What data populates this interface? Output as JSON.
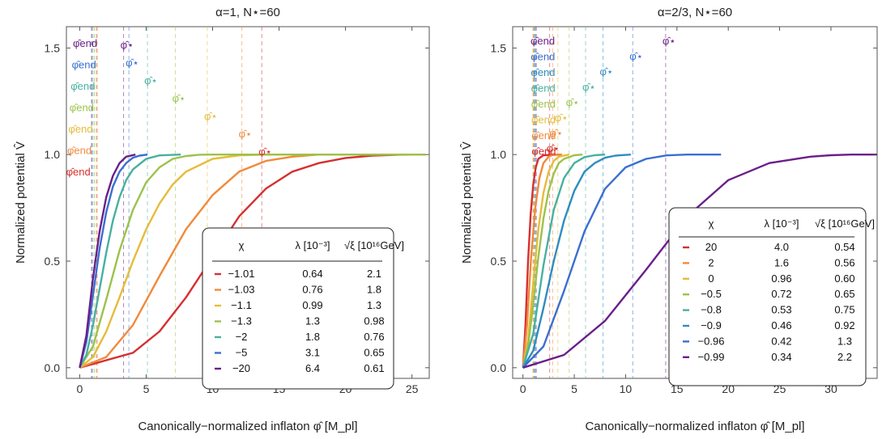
{
  "chart_data": [
    {
      "type": "line",
      "title": "α=1, N⋆=60",
      "xlabel": "Canonically−normalized inflaton φ̂ [M_pl]",
      "ylabel": "Normalized potential V̂",
      "xlim": [
        -1,
        26.3
      ],
      "ylim": [
        -0.05,
        1.6
      ],
      "xticks": [
        "0",
        "5",
        "10",
        "15",
        "20",
        "25"
      ],
      "yticks": [
        "0.0",
        "0.5",
        "1.0",
        "1.5"
      ],
      "legend_position": "bottom-right",
      "legend_headers": [
        "χ",
        "λ [10⁻³]",
        "√ξ [10¹⁶GeV]"
      ],
      "annotation_labels": {
        "end": "φ̂end",
        "star": "φ̂⋆"
      },
      "series": [
        {
          "chi": "−1.01",
          "lambda": "0.64",
          "sqrt_xi": "2.1",
          "color": "#d62f2f",
          "phi_end": 1.3,
          "phi_star": 13.7,
          "curve": [
            [
              0,
              0
            ],
            [
              4,
              0.07
            ],
            [
              6,
              0.17
            ],
            [
              8,
              0.33
            ],
            [
              10,
              0.52
            ],
            [
              12,
              0.71
            ],
            [
              14,
              0.84
            ],
            [
              16,
              0.92
            ],
            [
              18,
              0.96
            ],
            [
              20,
              0.984
            ],
            [
              22,
              0.995
            ],
            [
              24,
              0.999
            ],
            [
              26,
              1.0
            ]
          ]
        },
        {
          "chi": "−1.03",
          "lambda": "0.76",
          "sqrt_xi": "1.8",
          "color": "#f08a3c",
          "phi_end": 1.3,
          "phi_star": 12.2,
          "curve": [
            [
              0,
              0
            ],
            [
              2,
              0.05
            ],
            [
              4,
              0.2
            ],
            [
              6,
              0.43
            ],
            [
              8,
              0.65
            ],
            [
              10,
              0.81
            ],
            [
              12,
              0.92
            ],
            [
              14,
              0.97
            ],
            [
              16,
              0.99
            ],
            [
              18,
              1.0
            ],
            [
              26,
              1.0
            ]
          ]
        },
        {
          "chi": "−1.1",
          "lambda": "0.99",
          "sqrt_xi": "1.3",
          "color": "#e5bc3a",
          "phi_end": 1.2,
          "phi_star": 9.6,
          "curve": [
            [
              0,
              0
            ],
            [
              1,
              0.05
            ],
            [
              2,
              0.17
            ],
            [
              3,
              0.33
            ],
            [
              4,
              0.5
            ],
            [
              5,
              0.65
            ],
            [
              6,
              0.77
            ],
            [
              7,
              0.86
            ],
            [
              8,
              0.92
            ],
            [
              10,
              0.98
            ],
            [
              12,
              0.996
            ],
            [
              14,
              1.0
            ],
            [
              26,
              1.0
            ]
          ]
        },
        {
          "chi": "−1.3",
          "lambda": "1.3",
          "sqrt_xi": "0.98",
          "color": "#9cc24b",
          "phi_end": 1.1,
          "phi_star": 7.2,
          "curve": [
            [
              0,
              0
            ],
            [
              1,
              0.1
            ],
            [
              2,
              0.32
            ],
            [
              3,
              0.55
            ],
            [
              4,
              0.74
            ],
            [
              5,
              0.87
            ],
            [
              6,
              0.94
            ],
            [
              7,
              0.98
            ],
            [
              8,
              0.993
            ],
            [
              9,
              0.999
            ],
            [
              10,
              1.0
            ],
            [
              26,
              1.0
            ]
          ]
        },
        {
          "chi": "−2",
          "lambda": "1.8",
          "sqrt_xi": "0.76",
          "color": "#48b0a0",
          "phi_end": 1.0,
          "phi_star": 5.1,
          "curve": [
            [
              0,
              0
            ],
            [
              0.5,
              0.06
            ],
            [
              1,
              0.2
            ],
            [
              1.5,
              0.37
            ],
            [
              2,
              0.54
            ],
            [
              2.5,
              0.69
            ],
            [
              3,
              0.8
            ],
            [
              3.5,
              0.88
            ],
            [
              4,
              0.93
            ],
            [
              5,
              0.98
            ],
            [
              6,
              0.996
            ],
            [
              7.6,
              1.0
            ]
          ]
        },
        {
          "chi": "−5",
          "lambda": "3.1",
          "sqrt_xi": "0.65",
          "color": "#3a6fd0",
          "phi_end": 0.9,
          "phi_star": 3.7,
          "curve": [
            [
              0,
              0
            ],
            [
              0.5,
              0.12
            ],
            [
              1,
              0.34
            ],
            [
              1.5,
              0.56
            ],
            [
              2,
              0.73
            ],
            [
              2.5,
              0.85
            ],
            [
              3,
              0.92
            ],
            [
              3.5,
              0.96
            ],
            [
              4,
              0.985
            ],
            [
              4.5,
              0.995
            ],
            [
              5.1,
              1.0
            ]
          ]
        },
        {
          "chi": "−20",
          "lambda": "6.4",
          "sqrt_xi": "0.61",
          "color": "#6a1f8a",
          "phi_end": 0.9,
          "phi_star": 3.3,
          "curve": [
            [
              0,
              0
            ],
            [
              0.5,
              0.15
            ],
            [
              1,
              0.42
            ],
            [
              1.5,
              0.64
            ],
            [
              2,
              0.8
            ],
            [
              2.5,
              0.9
            ],
            [
              3,
              0.96
            ],
            [
              3.5,
              0.99
            ],
            [
              4.2,
              1.0
            ]
          ]
        }
      ]
    },
    {
      "type": "line",
      "title": "α=2/3, N⋆=60",
      "xlabel": "Canonically−normalized inflaton φ̂ [M_pl]",
      "ylabel": "Normalized potential V̂",
      "xlim": [
        -1,
        34.5
      ],
      "ylim": [
        -0.05,
        1.6
      ],
      "xticks": [
        "0",
        "5",
        "10",
        "15",
        "20",
        "25",
        "30"
      ],
      "yticks": [
        "0.0",
        "0.5",
        "1.0",
        "1.5"
      ],
      "legend_position": "right",
      "legend_headers": [
        "χ",
        "λ [10⁻³]",
        "√ξ [10¹⁶GeV]"
      ],
      "annotation_labels": {
        "end": "φ̂end",
        "star": "φ̂⋆"
      },
      "series": [
        {
          "chi": "20",
          "lambda": "4.0",
          "sqrt_xi": "0.54",
          "color": "#d62f2f",
          "phi_end": 1.0,
          "phi_star": 2.6,
          "curve": [
            [
              0,
              0
            ],
            [
              0.25,
              0.2
            ],
            [
              0.5,
              0.5
            ],
            [
              0.75,
              0.72
            ],
            [
              1,
              0.86
            ],
            [
              1.25,
              0.94
            ],
            [
              1.5,
              0.98
            ],
            [
              2,
              0.997
            ],
            [
              3.8,
              1.0
            ]
          ]
        },
        {
          "chi": "2",
          "lambda": "1.6",
          "sqrt_xi": "0.56",
          "color": "#f08a3c",
          "phi_end": 1.0,
          "phi_star": 2.9,
          "curve": [
            [
              0,
              0
            ],
            [
              0.4,
              0.2
            ],
            [
              0.8,
              0.52
            ],
            [
              1.2,
              0.75
            ],
            [
              1.6,
              0.89
            ],
            [
              2,
              0.96
            ],
            [
              2.5,
              0.99
            ],
            [
              3,
              1.0
            ],
            [
              3.8,
              1.0
            ]
          ]
        },
        {
          "chi": "0",
          "lambda": "0.96",
          "sqrt_xi": "0.60",
          "color": "#e5bc3a",
          "phi_end": 1.0,
          "phi_star": 3.4,
          "curve": [
            [
              0,
              0
            ],
            [
              0.5,
              0.13
            ],
            [
              1,
              0.4
            ],
            [
              1.5,
              0.65
            ],
            [
              2,
              0.82
            ],
            [
              2.5,
              0.92
            ],
            [
              3,
              0.97
            ],
            [
              3.5,
              0.99
            ],
            [
              4.5,
              1.0
            ]
          ]
        },
        {
          "chi": "−0.5",
          "lambda": "0.72",
          "sqrt_xi": "0.65",
          "color": "#9cc24b",
          "phi_end": 1.1,
          "phi_star": 4.5,
          "curve": [
            [
              0,
              0
            ],
            [
              0.5,
              0.1
            ],
            [
              1,
              0.3
            ],
            [
              1.5,
              0.52
            ],
            [
              2,
              0.7
            ],
            [
              2.5,
              0.83
            ],
            [
              3,
              0.91
            ],
            [
              3.5,
              0.96
            ],
            [
              4,
              0.98
            ],
            [
              5,
              0.997
            ],
            [
              5.8,
              1.0
            ]
          ]
        },
        {
          "chi": "−0.8",
          "lambda": "0.53",
          "sqrt_xi": "0.75",
          "color": "#48b0a0",
          "phi_end": 1.1,
          "phi_star": 6.1,
          "curve": [
            [
              0,
              0
            ],
            [
              1,
              0.16
            ],
            [
              2,
              0.48
            ],
            [
              3,
              0.74
            ],
            [
              4,
              0.89
            ],
            [
              5,
              0.96
            ],
            [
              6,
              0.988
            ],
            [
              7,
              0.997
            ],
            [
              8,
              1.0
            ]
          ]
        },
        {
          "chi": "−0.9",
          "lambda": "0.46",
          "sqrt_xi": "0.92",
          "color": "#2f8cc0",
          "phi_end": 1.2,
          "phi_star": 7.8,
          "curve": [
            [
              0,
              0
            ],
            [
              1,
              0.08
            ],
            [
              2,
              0.28
            ],
            [
              3,
              0.5
            ],
            [
              4,
              0.69
            ],
            [
              5,
              0.83
            ],
            [
              6,
              0.92
            ],
            [
              7,
              0.96
            ],
            [
              8,
              0.985
            ],
            [
              9,
              0.995
            ],
            [
              10.5,
              1.0
            ]
          ]
        },
        {
          "chi": "−0.96",
          "lambda": "0.42",
          "sqrt_xi": "1.3",
          "color": "#3a6fd0",
          "phi_end": 1.2,
          "phi_star": 10.7,
          "curve": [
            [
              0,
              0
            ],
            [
              2,
              0.1
            ],
            [
              4,
              0.36
            ],
            [
              6,
              0.64
            ],
            [
              8,
              0.84
            ],
            [
              10,
              0.94
            ],
            [
              12,
              0.98
            ],
            [
              14,
              0.996
            ],
            [
              16,
              1.0
            ],
            [
              19.3,
              1.0
            ]
          ]
        },
        {
          "chi": "−0.99",
          "lambda": "0.34",
          "sqrt_xi": "2.2",
          "color": "#6a1f8a",
          "phi_end": 1.3,
          "phi_star": 13.9,
          "curve": [
            [
              0,
              0
            ],
            [
              4,
              0.06
            ],
            [
              8,
              0.22
            ],
            [
              12,
              0.46
            ],
            [
              16,
              0.71
            ],
            [
              20,
              0.88
            ],
            [
              24,
              0.96
            ],
            [
              28,
              0.99
            ],
            [
              30,
              0.997
            ],
            [
              32,
              1.0
            ],
            [
              34.5,
              1.0
            ]
          ]
        }
      ]
    }
  ]
}
